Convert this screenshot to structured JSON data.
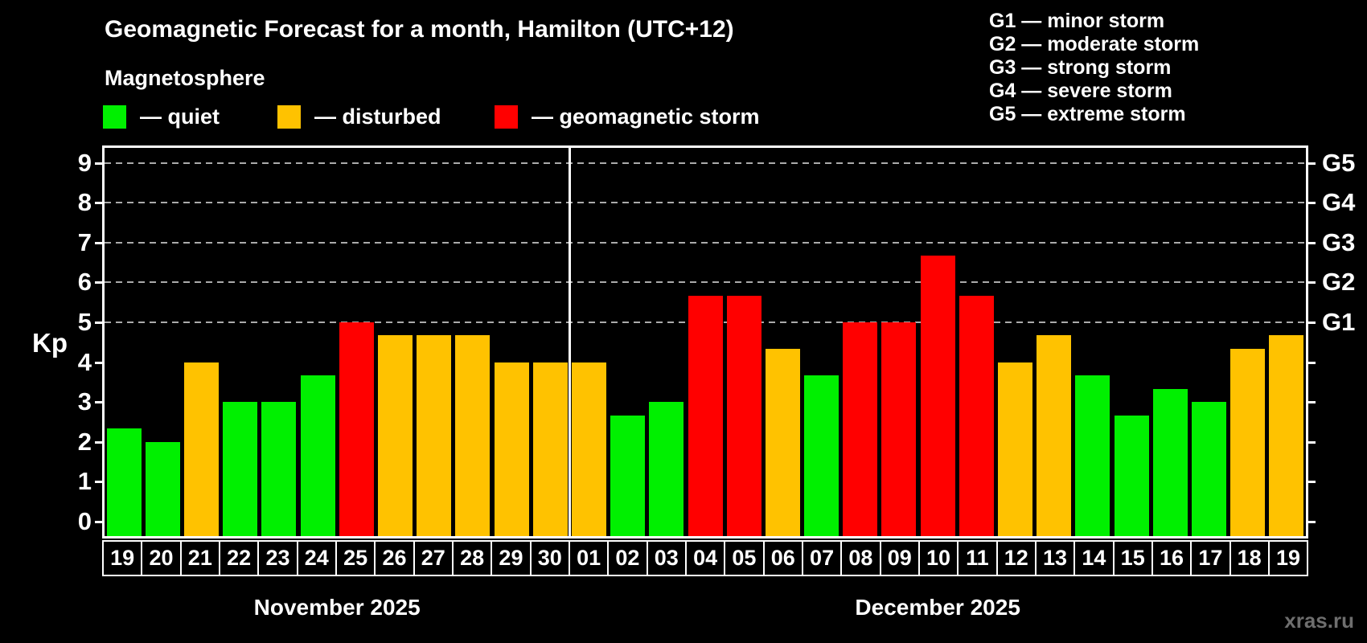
{
  "title": "Geomagnetic Forecast for a month, Hamilton (UTC+12)",
  "subtitle": "Magnetosphere",
  "bar_legend": {
    "items": [
      {
        "status": "quiet",
        "label": "— quiet",
        "color": "#00f000"
      },
      {
        "status": "disturbed",
        "label": "— disturbed",
        "color": "#ffc200"
      },
      {
        "status": "storm",
        "label": "— geomagnetic storm",
        "color": "#ff0000"
      }
    ]
  },
  "g_scale_legend": {
    "lines": [
      "G1 — minor storm",
      "G2 — moderate storm",
      "G3 — strong storm",
      "G4 — severe storm",
      "G5 — extreme storm"
    ]
  },
  "y_axis": {
    "label": "Kp",
    "ticks": [
      0,
      1,
      2,
      3,
      4,
      5,
      6,
      7,
      8,
      9
    ]
  },
  "right_axis": {
    "labels": [
      {
        "kp": 5,
        "label": "G1"
      },
      {
        "kp": 6,
        "label": "G2"
      },
      {
        "kp": 7,
        "label": "G3"
      },
      {
        "kp": 8,
        "label": "G4"
      },
      {
        "kp": 9,
        "label": "G5"
      }
    ]
  },
  "months": [
    {
      "label": "November 2025",
      "short": "nov",
      "days": 12
    },
    {
      "label": "December 2025",
      "short": "dec",
      "days": 19
    }
  ],
  "watermark": "xras.ru",
  "colors": {
    "background": "#000000",
    "quiet": "#00f000",
    "disturbed": "#ffc200",
    "storm": "#ff0000",
    "grid": "#ababab",
    "frame": "#ffffff",
    "watermark": "#6e6e6e"
  },
  "chart_data": {
    "type": "bar",
    "title": "Geomagnetic Forecast for a month, Hamilton (UTC+12)",
    "xlabel": "",
    "ylabel": "Kp",
    "ylim": [
      0,
      9
    ],
    "gridlines_at": [
      5,
      6,
      7,
      8,
      9
    ],
    "legend_position": "top",
    "categories": [
      "19",
      "20",
      "21",
      "22",
      "23",
      "24",
      "25",
      "26",
      "27",
      "28",
      "29",
      "30",
      "01",
      "02",
      "03",
      "04",
      "05",
      "06",
      "07",
      "08",
      "09",
      "10",
      "11",
      "12",
      "13",
      "14",
      "15",
      "16",
      "17",
      "18",
      "19"
    ],
    "values": [
      2.33,
      2.0,
      4.0,
      3.0,
      3.0,
      3.67,
      5.0,
      4.67,
      4.67,
      4.67,
      4.0,
      4.0,
      4.0,
      2.67,
      3.0,
      5.67,
      5.67,
      4.33,
      3.67,
      5.0,
      5.0,
      6.67,
      5.67,
      4.0,
      4.67,
      3.67,
      2.67,
      3.33,
      3.0,
      4.33,
      4.67
    ],
    "statuses": [
      "quiet",
      "quiet",
      "disturbed",
      "quiet",
      "quiet",
      "quiet",
      "storm",
      "disturbed",
      "disturbed",
      "disturbed",
      "disturbed",
      "disturbed",
      "disturbed",
      "quiet",
      "quiet",
      "storm",
      "storm",
      "disturbed",
      "quiet",
      "storm",
      "storm",
      "storm",
      "storm",
      "disturbed",
      "disturbed",
      "quiet",
      "quiet",
      "quiet",
      "quiet",
      "disturbed",
      "disturbed"
    ]
  }
}
